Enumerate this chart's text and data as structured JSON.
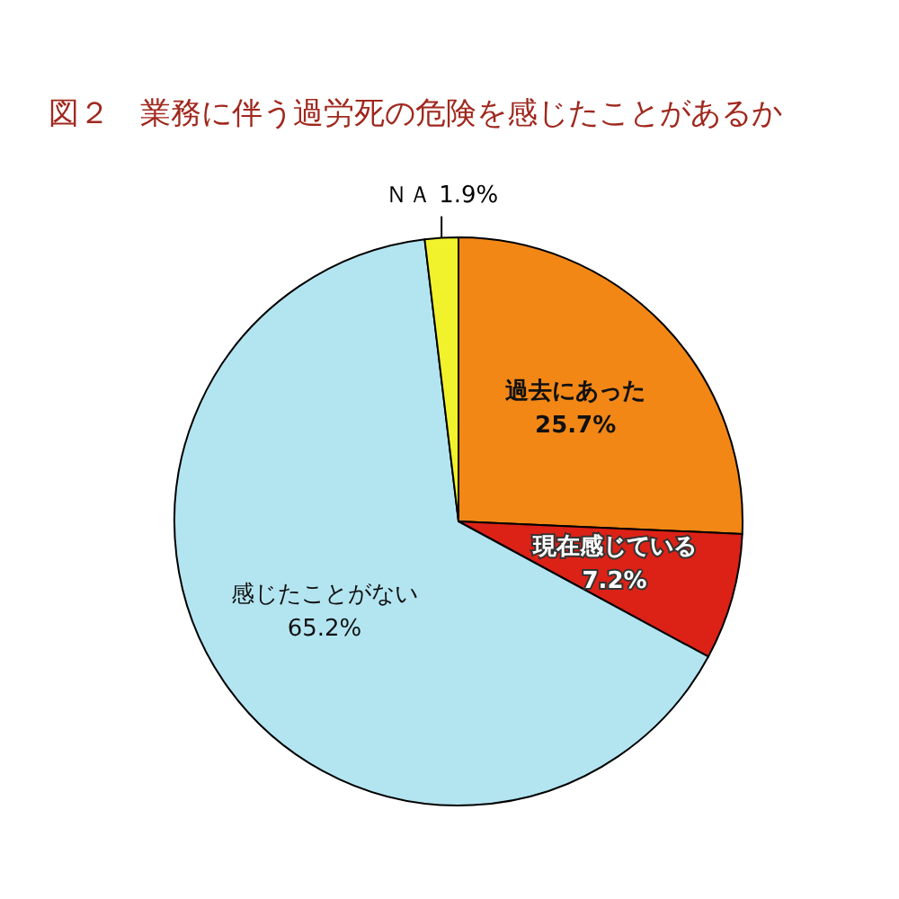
{
  "chart_data": {
    "type": "pie",
    "title": "図２　業務に伴う過労死の危険を感じたことがあるか",
    "categories": [
      "過去にあった",
      "現在感じている",
      "感じたことがない",
      "ＮＡ"
    ],
    "values": [
      25.7,
      7.2,
      65.2,
      1.9
    ],
    "value_labels": [
      "25.7%",
      "7.2%",
      "65.2%",
      "1.9%"
    ],
    "colors": [
      "#f28716",
      "#dc2117",
      "#b3e5f1",
      "#f2f22c"
    ]
  }
}
